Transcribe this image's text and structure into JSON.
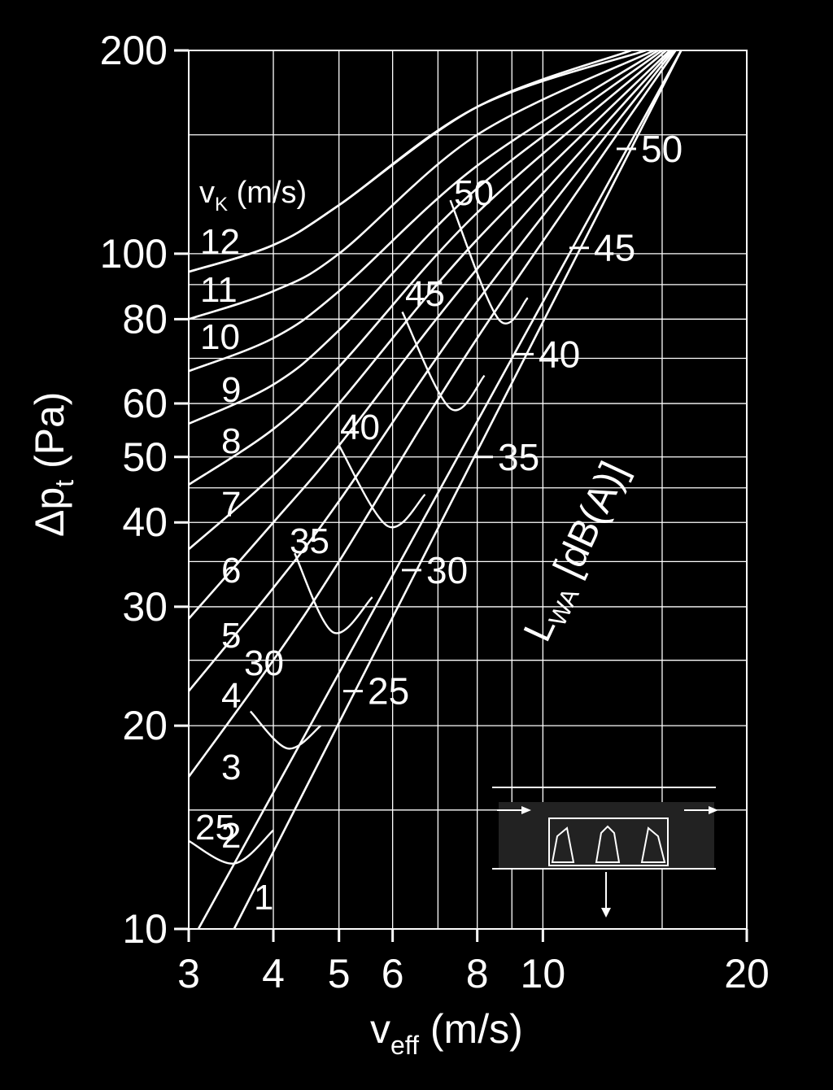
{
  "chart_data": {
    "type": "line",
    "xlabel": {
      "main": "v",
      "sub": "eff",
      "unit": " (m/s)"
    },
    "ylabel": {
      "main": "Δp",
      "sub": "t",
      "unit": " (Pa)"
    },
    "xscale": "log",
    "yscale": "log",
    "xlim": [
      3,
      20
    ],
    "ylim": [
      10,
      200
    ],
    "grid": true,
    "xticks": [
      3,
      4,
      5,
      6,
      8,
      10,
      20
    ],
    "xtick_labels": [
      "3",
      "4",
      "5",
      "6",
      "8",
      "10",
      "20"
    ],
    "yticks": [
      10,
      20,
      30,
      40,
      50,
      60,
      80,
      100,
      200
    ],
    "ytick_labels": [
      "10",
      "20",
      "30",
      "40",
      "50",
      "60",
      "80",
      "100",
      "200"
    ],
    "vk_header": {
      "main": "v",
      "sub": "K",
      "unit": " (m/s)"
    },
    "series": [
      {
        "name": "1",
        "x": [
          3.5,
          16
        ],
        "y": [
          10,
          200
        ]
      },
      {
        "name": "2",
        "x": [
          3.1,
          16
        ],
        "y": [
          10,
          200
        ]
      },
      {
        "name": "3",
        "x": [
          3.0,
          4.0,
          5.0,
          8.0,
          15.7
        ],
        "y": [
          16.8,
          25,
          35,
          75,
          200
        ]
      },
      {
        "name": "4",
        "x": [
          3.0,
          4.0,
          5.0,
          8.0,
          15.6
        ],
        "y": [
          22.5,
          32,
          43,
          85,
          200
        ]
      },
      {
        "name": "5",
        "x": [
          3.0,
          4.0,
          5.0,
          8.0,
          15.5
        ],
        "y": [
          28.8,
          40,
          52,
          95,
          200
        ]
      },
      {
        "name": "6",
        "x": [
          3.0,
          4.0,
          5.0,
          8.0,
          15.4
        ],
        "y": [
          36.5,
          47,
          60,
          105,
          200
        ]
      },
      {
        "name": "7",
        "x": [
          3.0,
          4.0,
          5.0,
          8.0,
          15.2
        ],
        "y": [
          45.5,
          55,
          68,
          115,
          200
        ]
      },
      {
        "name": "8",
        "x": [
          3.0,
          4.0,
          5.0,
          8.0,
          15.0
        ],
        "y": [
          56,
          64,
          77,
          125,
          200
        ]
      },
      {
        "name": "9",
        "x": [
          3.0,
          4.0,
          5.0,
          8.0,
          14.8
        ],
        "y": [
          67,
          75,
          88,
          135,
          200
        ]
      },
      {
        "name": "10",
        "x": [
          3.0,
          4.0,
          5.0,
          8.0,
          14.6
        ],
        "y": [
          80,
          88,
          100,
          150,
          200
        ]
      },
      {
        "name": "11",
        "x": [
          3.0,
          4.0,
          5.0,
          8.0,
          14.2
        ],
        "y": [
          94,
          103,
          118,
          165,
          200
        ]
      },
      {
        "name": "12",
        "x": [
          3.0,
          4.0,
          5.0,
          8.0,
          13.5
        ],
        "y": [
          94,
          103,
          118,
          165,
          200
        ]
      }
    ],
    "lwa_title": {
      "main": "L",
      "sub": "WA",
      "unit": " [dB(A)]"
    },
    "lwa_lines": [
      {
        "label": "25",
        "x": [
          3.0,
          3.5,
          4.0
        ],
        "y": [
          13.5,
          12.5,
          14.0
        ]
      },
      {
        "label": "30",
        "x": [
          3.7,
          4.2,
          4.7
        ],
        "y": [
          21.0,
          18.5,
          20.0
        ]
      },
      {
        "label": "35",
        "x": [
          4.3,
          4.9,
          5.6
        ],
        "y": [
          36.0,
          27.5,
          31.0
        ]
      },
      {
        "label": "40",
        "x": [
          5.0,
          5.9,
          6.7
        ],
        "y": [
          52.0,
          39.5,
          44.0
        ]
      },
      {
        "label": "45",
        "x": [
          6.2,
          7.3,
          8.2
        ],
        "y": [
          82.0,
          59.0,
          66.0
        ]
      },
      {
        "label": "50",
        "x": [
          7.3,
          8.6,
          9.5
        ],
        "y": [
          120.0,
          80.0,
          86.0
        ]
      }
    ],
    "lwa_scale": [
      {
        "label": "25",
        "value": 22.5
      },
      {
        "label": "30",
        "value": 34.0
      },
      {
        "label": "35",
        "value": 50.0
      },
      {
        "label": "40",
        "value": 71.0
      },
      {
        "label": "45",
        "value": 102.0
      },
      {
        "label": "50",
        "value": 143.0
      }
    ]
  }
}
